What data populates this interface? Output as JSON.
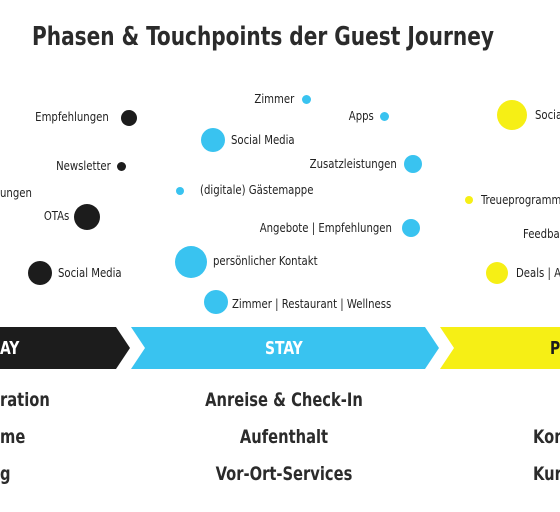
{
  "title": "Phasen & Touchpoints der Guest Journey",
  "colors": {
    "black": "#1c1c1c",
    "cyan": "#39c3f0",
    "yellow": "#f6ef15"
  },
  "touchpoints": [
    {
      "label": "Empfehlungen",
      "color": "black"
    },
    {
      "label": "Newsletter",
      "color": "black"
    },
    {
      "label": "ungen",
      "color": "black"
    },
    {
      "label": "OTAs",
      "color": "black"
    },
    {
      "label": "Social Media",
      "color": "black"
    },
    {
      "label": "Zimmer",
      "color": "cyan"
    },
    {
      "label": "Apps",
      "color": "cyan"
    },
    {
      "label": "Social Media",
      "color": "cyan"
    },
    {
      "label": "Zusatzleistungen",
      "color": "cyan"
    },
    {
      "label": "(digitale) Gästemappe",
      "color": "cyan"
    },
    {
      "label": "Angebote | Empfehlungen",
      "color": "cyan"
    },
    {
      "label": "persönlicher Kontakt",
      "color": "cyan"
    },
    {
      "label": "Zimmer | Restaurant | Wellness",
      "color": "cyan"
    },
    {
      "label": "Socia",
      "color": "yellow"
    },
    {
      "label": "Treueprogramm",
      "color": "yellow"
    },
    {
      "label": "Feedba",
      "color": "yellow"
    },
    {
      "label": "Deals | A",
      "color": "yellow"
    }
  ],
  "phases": [
    {
      "label": "AY",
      "color": "black"
    },
    {
      "label": "STAY",
      "color": "cyan"
    },
    {
      "label": "P",
      "color": "yellow"
    }
  ],
  "phase_items": {
    "pre": [
      "ration",
      "me",
      "g"
    ],
    "stay": [
      "Anreise & Check-In",
      "Aufenthalt",
      "Vor-Ort-Services"
    ],
    "post": [
      "Kon",
      "Kur"
    ]
  }
}
